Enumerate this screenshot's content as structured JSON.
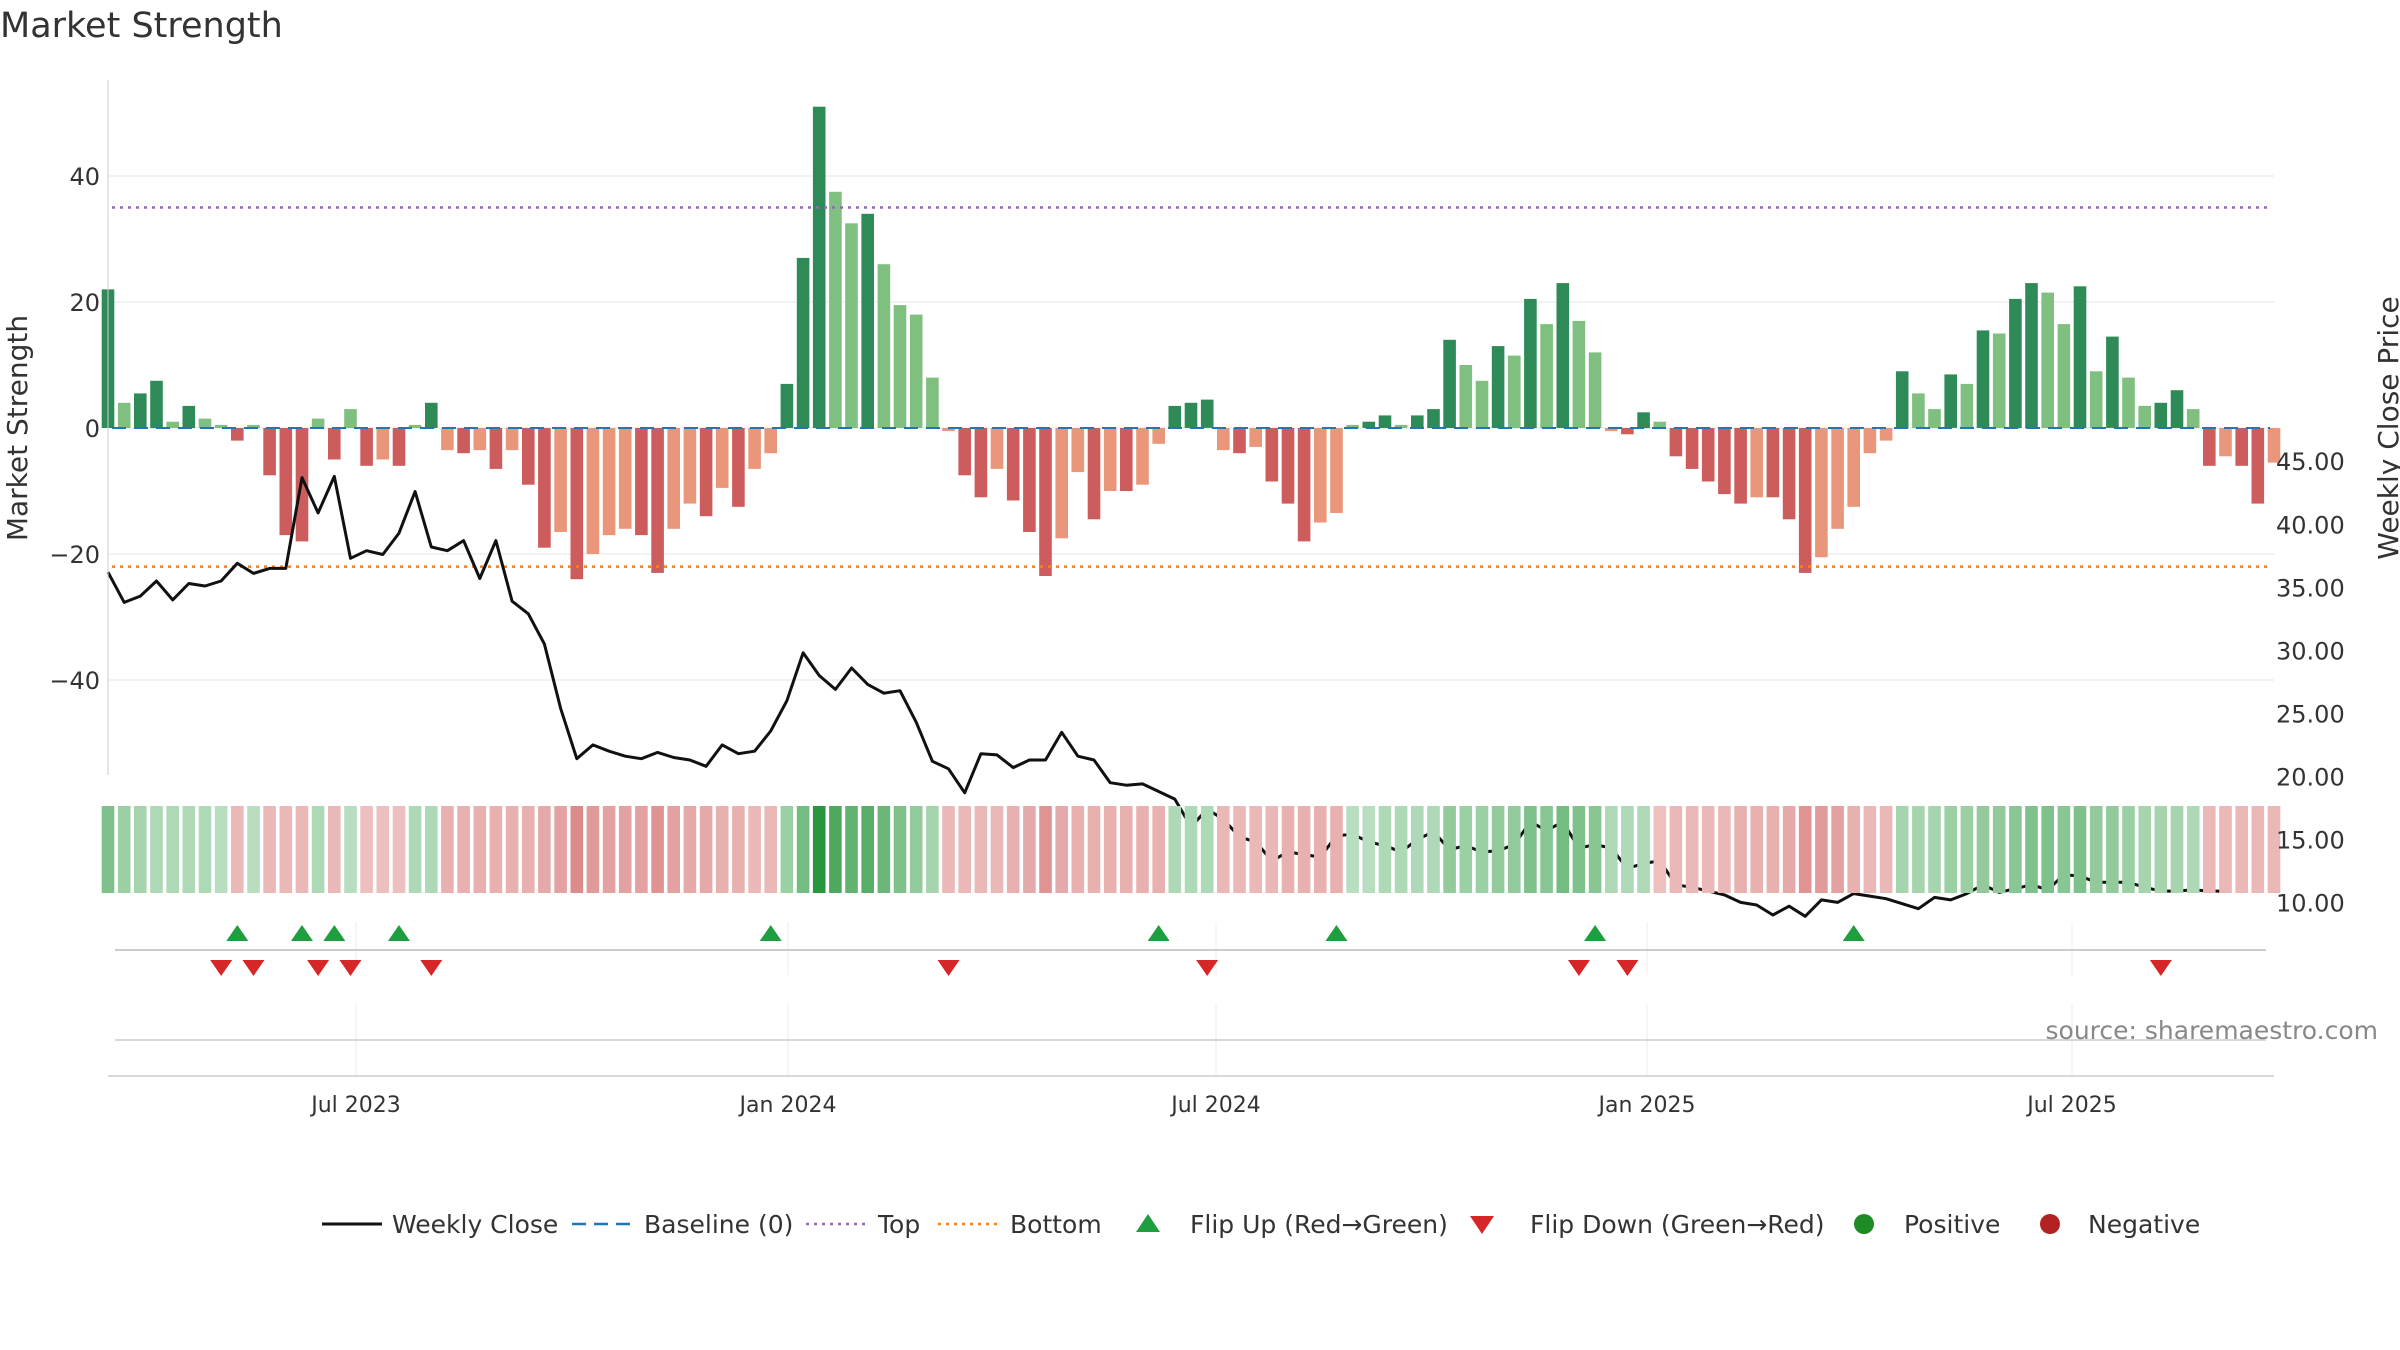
{
  "chart_data": {
    "type": "bar",
    "title": "Market Strength",
    "ylabel": "Market Strength",
    "y2label": "Weekly Close Price",
    "ylim": [
      -55,
      55
    ],
    "y2lim": [
      6.4,
      46.0
    ],
    "yticks": [
      "40",
      "20",
      "0",
      "−20",
      "−40"
    ],
    "y2ticks": [
      "45.00",
      "40.00",
      "35.00",
      "30.00",
      "25.00",
      "20.00",
      "15.00",
      "10.00"
    ],
    "x_tick_labels": [
      "Jul 2023",
      "Jan 2024",
      "Jul 2024",
      "Jan 2025",
      "Jul 2025"
    ],
    "top_level": 35,
    "bottom_level": -22,
    "strength": [
      22,
      4,
      5.5,
      7.5,
      1,
      3.5,
      1.5,
      0.5,
      -2,
      0.5,
      -7.5,
      -17,
      -18,
      1.5,
      -5,
      3,
      -6,
      -5,
      -6,
      0.5,
      4,
      -3.5,
      -4,
      -3.5,
      -6.5,
      -3.5,
      -9,
      -19,
      -16.5,
      -24,
      -20,
      -17,
      -16,
      -17,
      -23,
      -16,
      -12,
      -14,
      -9.5,
      -12.5,
      -6.5,
      -4,
      7,
      27,
      51,
      37.5,
      32.5,
      34,
      26,
      19.5,
      18,
      8,
      -0.5,
      -7.5,
      -11,
      -6.5,
      -11.5,
      -16.5,
      -23.5,
      -17.5,
      -7,
      -14.5,
      -10,
      -10,
      -9,
      -2.5,
      3.5,
      4,
      4.5,
      -3.5,
      -4,
      -3,
      -8.5,
      -12,
      -18,
      -15,
      -13.5,
      0.5,
      1,
      2,
      0.5,
      2,
      3,
      14,
      10,
      7.5,
      13,
      11.5,
      20.5,
      16.5,
      23,
      17,
      12,
      -0.5,
      -1,
      2.5,
      1,
      -4.5,
      -6.5,
      -8.5,
      -10.5,
      -12,
      -11,
      -11,
      -14.5,
      -23,
      -20.5,
      -16,
      -12.5,
      -4,
      -2,
      9,
      5.5,
      3,
      8.5,
      7,
      15.5,
      15,
      20.5,
      23,
      21.5,
      16.5,
      22.5,
      9,
      14.5,
      8,
      3.5,
      4,
      6,
      3,
      -6,
      -4.5,
      -6,
      -12,
      -5.5
    ],
    "close": [
      36.2,
      33.8,
      34.3,
      35.5,
      34.0,
      35.3,
      35.1,
      35.5,
      36.9,
      36.1,
      36.5,
      36.5,
      43.7,
      40.9,
      43.8,
      37.3,
      37.9,
      37.6,
      39.3,
      42.6,
      38.2,
      37.9,
      38.7,
      35.7,
      38.7,
      33.9,
      32.9,
      30.5,
      25.4,
      21.4,
      22.5,
      22.0,
      21.6,
      21.4,
      21.9,
      21.5,
      21.3,
      20.8,
      22.5,
      21.8,
      22.0,
      23.6,
      26.0,
      29.8,
      28.0,
      26.9,
      28.6,
      27.3,
      26.6,
      26.8,
      24.3,
      21.2,
      20.6,
      18.7,
      21.8,
      21.7,
      20.7,
      21.3,
      21.3,
      23.5,
      21.6,
      21.3,
      19.5,
      19.3,
      19.4,
      18.8,
      18.2,
      16.0,
      17.4,
      16.6,
      15.2,
      14.8,
      13.3,
      14.0,
      13.8,
      13.6,
      15.3,
      15.4,
      14.8,
      14.5,
      14.0,
      15.0,
      15.6,
      14.2,
      14.5,
      14.0,
      14.1,
      14.6,
      16.4,
      15.7,
      16.4,
      14.3,
      14.6,
      14.3,
      12.7,
      13.1,
      13.3,
      11.4,
      11.2,
      10.9,
      10.6,
      10.0,
      9.8,
      9.0,
      9.7,
      8.9,
      10.2,
      10.0,
      10.7,
      10.5,
      10.3,
      9.9,
      9.5,
      10.4,
      10.2,
      10.7,
      11.4,
      10.8,
      11.1,
      11.4,
      11.0,
      12.2,
      12.1,
      11.6,
      11.6,
      11.6,
      11.2,
      10.9,
      10.9,
      11.0,
      10.9,
      10.9
    ],
    "heat_levels": [
      0.55,
      0.4,
      0.35,
      0.3,
      0.3,
      0.3,
      0.3,
      0.25,
      -0.3,
      0.25,
      -0.3,
      -0.3,
      -0.3,
      0.3,
      -0.3,
      0.25,
      -0.25,
      -0.25,
      -0.25,
      0.3,
      0.3,
      -0.35,
      -0.35,
      -0.35,
      -0.35,
      -0.35,
      -0.35,
      -0.4,
      -0.45,
      -0.6,
      -0.5,
      -0.45,
      -0.45,
      -0.45,
      -0.55,
      -0.45,
      -0.4,
      -0.4,
      -0.35,
      -0.35,
      -0.3,
      -0.3,
      0.4,
      0.6,
      1.0,
      0.8,
      0.7,
      0.75,
      0.65,
      0.55,
      0.45,
      0.35,
      -0.3,
      -0.3,
      -0.3,
      -0.3,
      -0.35,
      -0.4,
      -0.55,
      -0.4,
      -0.35,
      -0.35,
      -0.35,
      -0.35,
      -0.35,
      -0.35,
      0.3,
      0.3,
      0.3,
      -0.3,
      -0.3,
      -0.3,
      -0.3,
      -0.35,
      -0.35,
      -0.35,
      -0.35,
      0.25,
      0.25,
      0.3,
      0.3,
      0.3,
      0.3,
      0.45,
      0.4,
      0.4,
      0.45,
      0.45,
      0.55,
      0.5,
      0.6,
      0.55,
      0.5,
      0.3,
      0.3,
      0.3,
      -0.25,
      -0.3,
      -0.3,
      -0.3,
      -0.3,
      -0.35,
      -0.35,
      -0.35,
      -0.4,
      -0.55,
      -0.5,
      -0.45,
      -0.35,
      -0.3,
      -0.3,
      0.35,
      0.35,
      0.35,
      0.4,
      0.4,
      0.45,
      0.45,
      0.5,
      0.55,
      0.55,
      0.5,
      0.55,
      0.45,
      0.45,
      0.4,
      0.35,
      0.35,
      0.35,
      0.3,
      -0.3,
      -0.3,
      -0.3,
      -0.3,
      -0.3
    ],
    "flip_up_idx": [
      8,
      12,
      14,
      18,
      41,
      65,
      76,
      92,
      108
    ],
    "flip_down_idx": [
      7,
      9,
      13,
      15,
      20,
      52,
      68,
      91,
      94,
      127
    ],
    "colors": {
      "strong_pos": "#2e8b57",
      "weak_pos": "#7fbf7f",
      "strong_neg": "#cd5c5c",
      "weak_neg": "#e9967a",
      "close_line": "#111111",
      "baseline": "#1f77b4",
      "top": "#9467bd",
      "bottom": "#ff7f0e",
      "flip_up": "#1f9e3f",
      "flip_down": "#d62728",
      "positive": "#1f8b24",
      "negative": "#b22222"
    },
    "legend": [
      {
        "label": "Weekly Close",
        "kind": "line"
      },
      {
        "label": "Baseline (0)",
        "kind": "dash"
      },
      {
        "label": "Top",
        "kind": "dot-purple"
      },
      {
        "label": "Bottom",
        "kind": "dot-orange"
      },
      {
        "label": "Flip Up (Red→Green)",
        "kind": "tri-up"
      },
      {
        "label": "Flip Down (Green→Red)",
        "kind": "tri-down"
      },
      {
        "label": "Positive",
        "kind": "dot-green"
      },
      {
        "label": "Negative",
        "kind": "dot-red"
      }
    ],
    "legend_position": "bottom",
    "source": "source: sharemaestro.com"
  }
}
